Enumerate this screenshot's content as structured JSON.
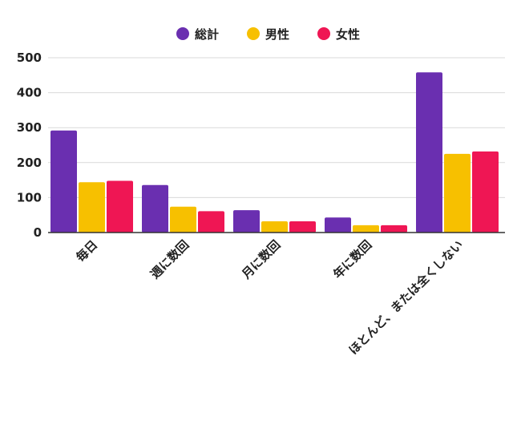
{
  "chart_data": {
    "type": "bar",
    "categories": [
      "毎日",
      "週に数回",
      "月に数回",
      "年に数回",
      "ほとんど、または全くしない"
    ],
    "series": [
      {
        "name": "総計",
        "color": "#6a2fb0",
        "values": [
          292,
          136,
          64,
          43,
          458
        ]
      },
      {
        "name": "男性",
        "color": "#f7c000",
        "values": [
          144,
          74,
          32,
          21,
          225
        ]
      },
      {
        "name": "女性",
        "color": "#ef1654",
        "values": [
          148,
          61,
          32,
          21,
          232
        ]
      }
    ],
    "yticks": [
      0,
      100,
      200,
      300,
      400,
      500
    ],
    "ylim": [
      0,
      500
    ],
    "grid": true,
    "legend_position": "top-center",
    "title": "",
    "xlabel": "",
    "ylabel": ""
  }
}
